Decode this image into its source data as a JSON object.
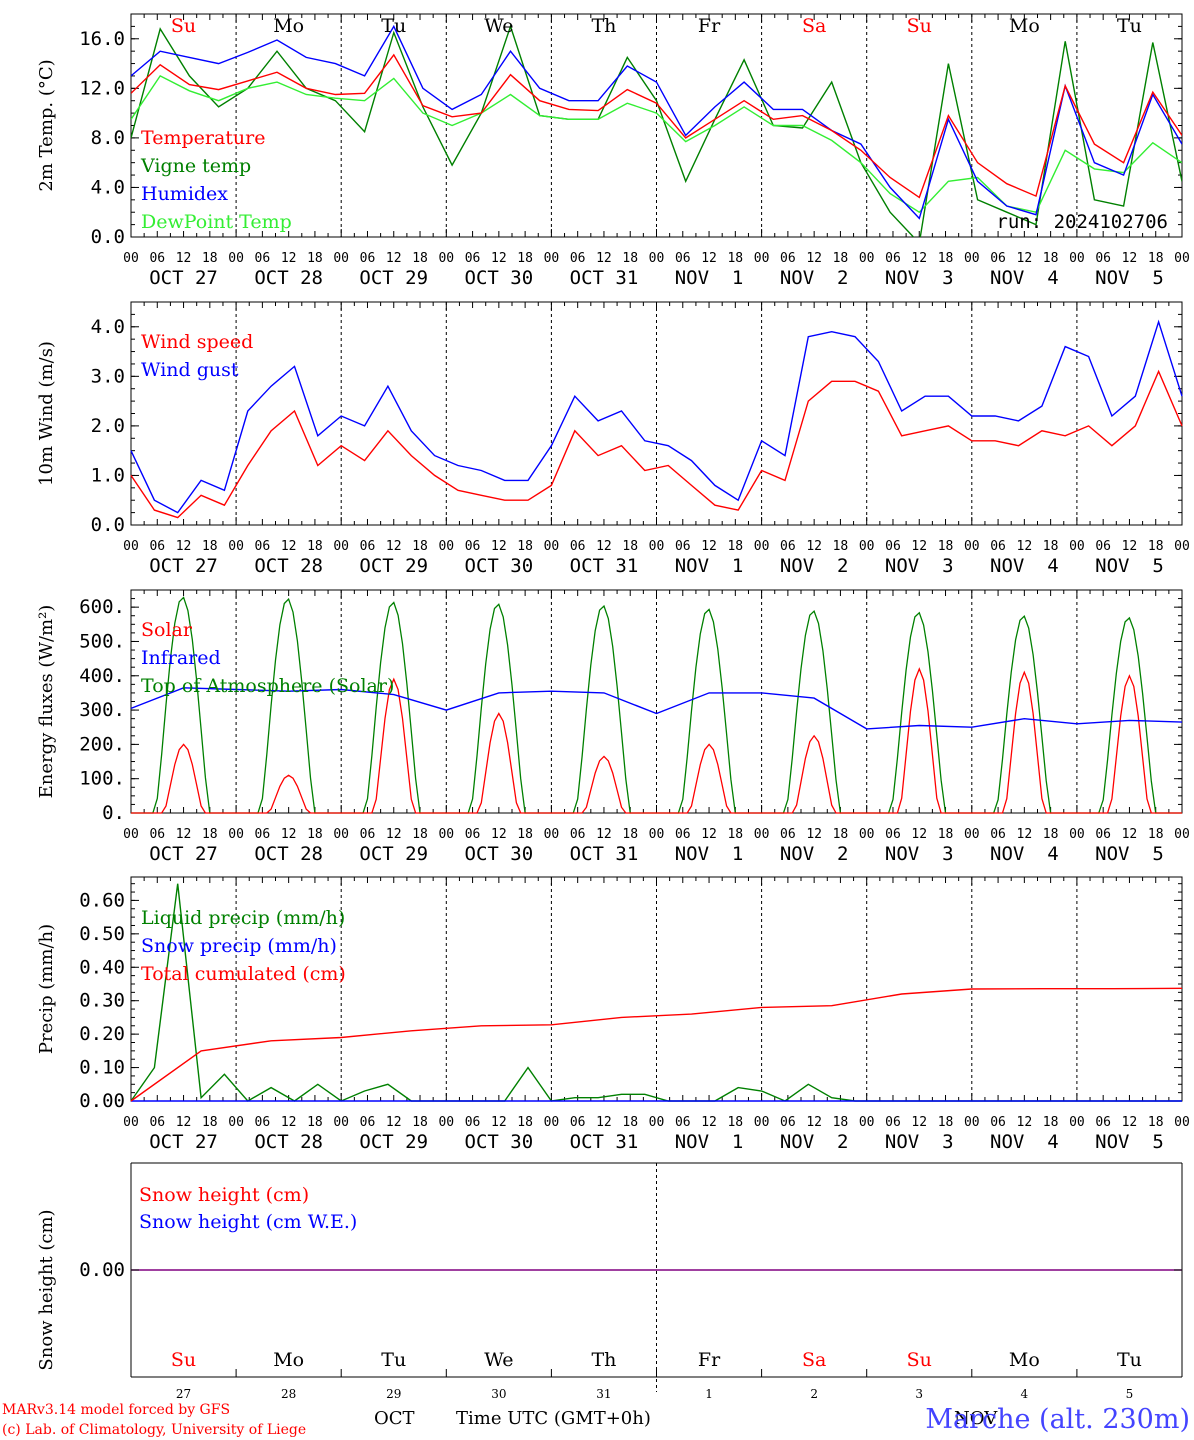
{
  "days": {
    "top": [
      "Su",
      "Mo",
      "Tu",
      "We",
      "Th",
      "Fr",
      "Sa",
      "Su",
      "Mo",
      "Tu"
    ],
    "dates": [
      "OCT 27",
      "OCT 28",
      "OCT 29",
      "OCT 30",
      "OCT 31",
      "NOV  1",
      "NOV  2",
      "NOV  3",
      "NOV  4",
      "NOV  5"
    ],
    "hour_labels": [
      "00",
      "06",
      "12",
      "18"
    ],
    "weekend_indices": [
      0,
      6,
      7
    ],
    "bottom_nums": [
      "27",
      "28",
      "29",
      "30",
      "31",
      "1",
      "2",
      "3",
      "4",
      "5"
    ]
  },
  "colors": {
    "red": "#ff0000",
    "green": "#008000",
    "blue": "#0000ff",
    "light_green": "#33ee33",
    "purple": "#800080",
    "station_blue": "#4444ff"
  },
  "footer": {
    "line1": "MARv3.14 model forced by GFS",
    "line2": "(c) Lab. of Climatology, University of Liege",
    "month_left": "OCT",
    "month_right": "NOV",
    "time_label": "Time UTC (GMT+0h)",
    "station": "Marche (alt. 230m)"
  },
  "chart_data": [
    {
      "type": "line",
      "ylabel": "2m Temp. (°C)",
      "ylim": [
        0,
        18
      ],
      "yticks": [
        "0.0",
        "4.0",
        "8.0",
        "12.0",
        "16.0"
      ],
      "run_label": "run: 2024102706",
      "x_hours_step": 24,
      "series": [
        {
          "name": "Temperature",
          "color": "#ff0000",
          "values": [
            11.6,
            13.9,
            12.3,
            11.9,
            12.6,
            13.3,
            12.0,
            11.5,
            11.6,
            14.7,
            10.6,
            9.7,
            10.0,
            13.1,
            11.0,
            10.3,
            10.2,
            11.9,
            10.8,
            8.0,
            9.5,
            11.0,
            9.5,
            9.8,
            8.6,
            7.0,
            4.8,
            3.2,
            9.8,
            6.0,
            4.3,
            3.3,
            12.2,
            7.5,
            6.0,
            11.7,
            8.2
          ]
        },
        {
          "name": "Vigne temp",
          "color": "#008000",
          "values": [
            8.0,
            16.8,
            13.0,
            10.5,
            12.0,
            15.0,
            12.0,
            11.0,
            8.5,
            16.5,
            10.5,
            5.8,
            10.0,
            17.0,
            9.8,
            9.5,
            9.5,
            14.5,
            11.0,
            4.5,
            9.5,
            14.3,
            9.0,
            8.8,
            12.5,
            6.0,
            2.0,
            -0.5,
            14.0,
            3.0,
            2.0,
            1.0,
            15.8,
            3.0,
            2.5,
            15.7,
            4.5
          ]
        },
        {
          "name": "Humidex",
          "color": "#0000ff",
          "values": [
            13.0,
            15.0,
            14.5,
            14.0,
            14.9,
            15.9,
            14.5,
            14.0,
            13.0,
            17.0,
            12.0,
            10.3,
            11.5,
            15.0,
            12.0,
            11.0,
            11.0,
            13.8,
            12.5,
            8.2,
            10.5,
            12.5,
            10.3,
            10.3,
            8.6,
            7.5,
            4.0,
            1.5,
            9.5,
            4.5,
            2.5,
            1.8,
            12.2,
            6.0,
            5.0,
            11.5,
            7.5
          ]
        },
        {
          "name": "DewPoint Temp",
          "color": "#33ee33",
          "values": [
            9.5,
            13.0,
            11.8,
            11.0,
            12.0,
            12.5,
            11.5,
            11.2,
            11.0,
            12.8,
            10.0,
            9.0,
            10.0,
            11.5,
            9.8,
            9.5,
            9.5,
            10.8,
            10.0,
            7.7,
            9.0,
            10.5,
            9.0,
            9.0,
            7.8,
            6.0,
            3.5,
            2.0,
            4.5,
            4.8,
            2.5,
            2.0,
            7.0,
            5.5,
            5.2,
            7.6,
            6.0
          ]
        }
      ]
    },
    {
      "type": "line",
      "ylabel": "10m Wind (m/s)",
      "ylim": [
        0,
        4.5
      ],
      "yticks": [
        "0.0",
        "1.0",
        "2.0",
        "3.0",
        "4.0"
      ],
      "x_hours_step": 6,
      "series": [
        {
          "name": "Wind speed",
          "color": "#ff0000",
          "values": [
            1.0,
            0.3,
            0.15,
            0.6,
            0.4,
            1.2,
            1.9,
            2.3,
            1.2,
            1.6,
            1.3,
            1.9,
            1.4,
            1.0,
            0.7,
            0.6,
            0.5,
            0.5,
            0.8,
            1.9,
            1.4,
            1.6,
            1.1,
            1.2,
            0.8,
            0.4,
            0.3,
            1.1,
            0.9,
            2.5,
            2.9,
            2.9,
            2.7,
            1.8,
            1.9,
            2.0,
            1.7,
            1.7,
            1.6,
            1.9,
            1.8,
            2.0,
            1.6,
            2.0,
            3.1,
            2.0
          ]
        },
        {
          "name": "Wind gust",
          "color": "#0000ff",
          "values": [
            1.5,
            0.5,
            0.25,
            0.9,
            0.7,
            2.3,
            2.8,
            3.2,
            1.8,
            2.2,
            2.0,
            2.8,
            1.9,
            1.4,
            1.2,
            1.1,
            0.9,
            0.9,
            1.6,
            2.6,
            2.1,
            2.3,
            1.7,
            1.6,
            1.3,
            0.8,
            0.5,
            1.7,
            1.4,
            3.8,
            3.9,
            3.8,
            3.3,
            2.3,
            2.6,
            2.6,
            2.2,
            2.2,
            2.1,
            2.4,
            3.6,
            3.4,
            2.2,
            2.6,
            4.1,
            2.6
          ]
        }
      ]
    },
    {
      "type": "line",
      "ylabel": "Energy fluxes (W/m²)",
      "ylim": [
        0,
        650
      ],
      "yticks": [
        "0.",
        "100.",
        "200.",
        "300.",
        "400.",
        "500.",
        "600."
      ],
      "x_hours_step": 6,
      "series": [
        {
          "name": "Solar",
          "color": "#ff0000",
          "peaks": [
            200,
            110,
            390,
            290,
            165,
            200,
            225,
            420,
            410,
            400
          ]
        },
        {
          "name": "Infrared",
          "color": "#0000ff",
          "values": [
            305,
            365,
            360,
            355,
            360,
            345,
            300,
            350,
            355,
            350,
            290,
            350,
            350,
            335,
            245,
            255,
            250,
            275,
            260,
            270,
            265
          ]
        },
        {
          "name": "Top of Atmosphere (Solar)",
          "color": "#008000",
          "peaks": [
            630,
            625,
            615,
            610,
            605,
            595,
            590,
            585,
            575,
            570
          ]
        }
      ]
    },
    {
      "type": "line",
      "ylabel": "Precip (mm/h)",
      "ylim": [
        0,
        0.67
      ],
      "yticks": [
        "0.00",
        "0.10",
        "0.20",
        "0.30",
        "0.40",
        "0.50",
        "0.60"
      ],
      "x_hours_step": 6,
      "series": [
        {
          "name": "Liquid precip (mm/h)",
          "color": "#008000",
          "values": [
            0.0,
            0.1,
            0.65,
            0.01,
            0.08,
            0.0,
            0.04,
            0.0,
            0.05,
            0.0,
            0.03,
            0.05,
            0.0,
            0.0,
            0.0,
            0.0,
            0.0,
            0.1,
            0.0,
            0.01,
            0.01,
            0.02,
            0.02,
            0.0,
            0.0,
            0.0,
            0.04,
            0.03,
            0.0,
            0.05,
            0.01,
            0.0,
            0.0,
            0.0,
            0.0,
            0.0,
            0.0,
            0.0,
            0.0,
            0.0,
            0.0,
            0.0,
            0.0,
            0.0,
            0.0,
            0.0
          ]
        },
        {
          "name": "Snow precip (mm/h)",
          "color": "#0000ff",
          "values": [
            0,
            0,
            0,
            0,
            0,
            0,
            0,
            0,
            0,
            0,
            0
          ]
        },
        {
          "name": "Total cumulated (cm)",
          "color": "#ff0000",
          "values": [
            0.0,
            0.15,
            0.18,
            0.19,
            0.21,
            0.225,
            0.228,
            0.25,
            0.26,
            0.28,
            0.285,
            0.32,
            0.335,
            0.336,
            0.336,
            0.337
          ]
        }
      ]
    },
    {
      "type": "line",
      "ylabel": "Snow height (cm)",
      "yticks": [
        "0.00"
      ],
      "series": [
        {
          "name": "Snow height (cm)",
          "color": "#ff0000",
          "values": [
            0,
            0
          ]
        },
        {
          "name": "Snow height (cm W.E.)",
          "color": "#0000ff",
          "values": [
            0,
            0
          ]
        }
      ]
    }
  ]
}
